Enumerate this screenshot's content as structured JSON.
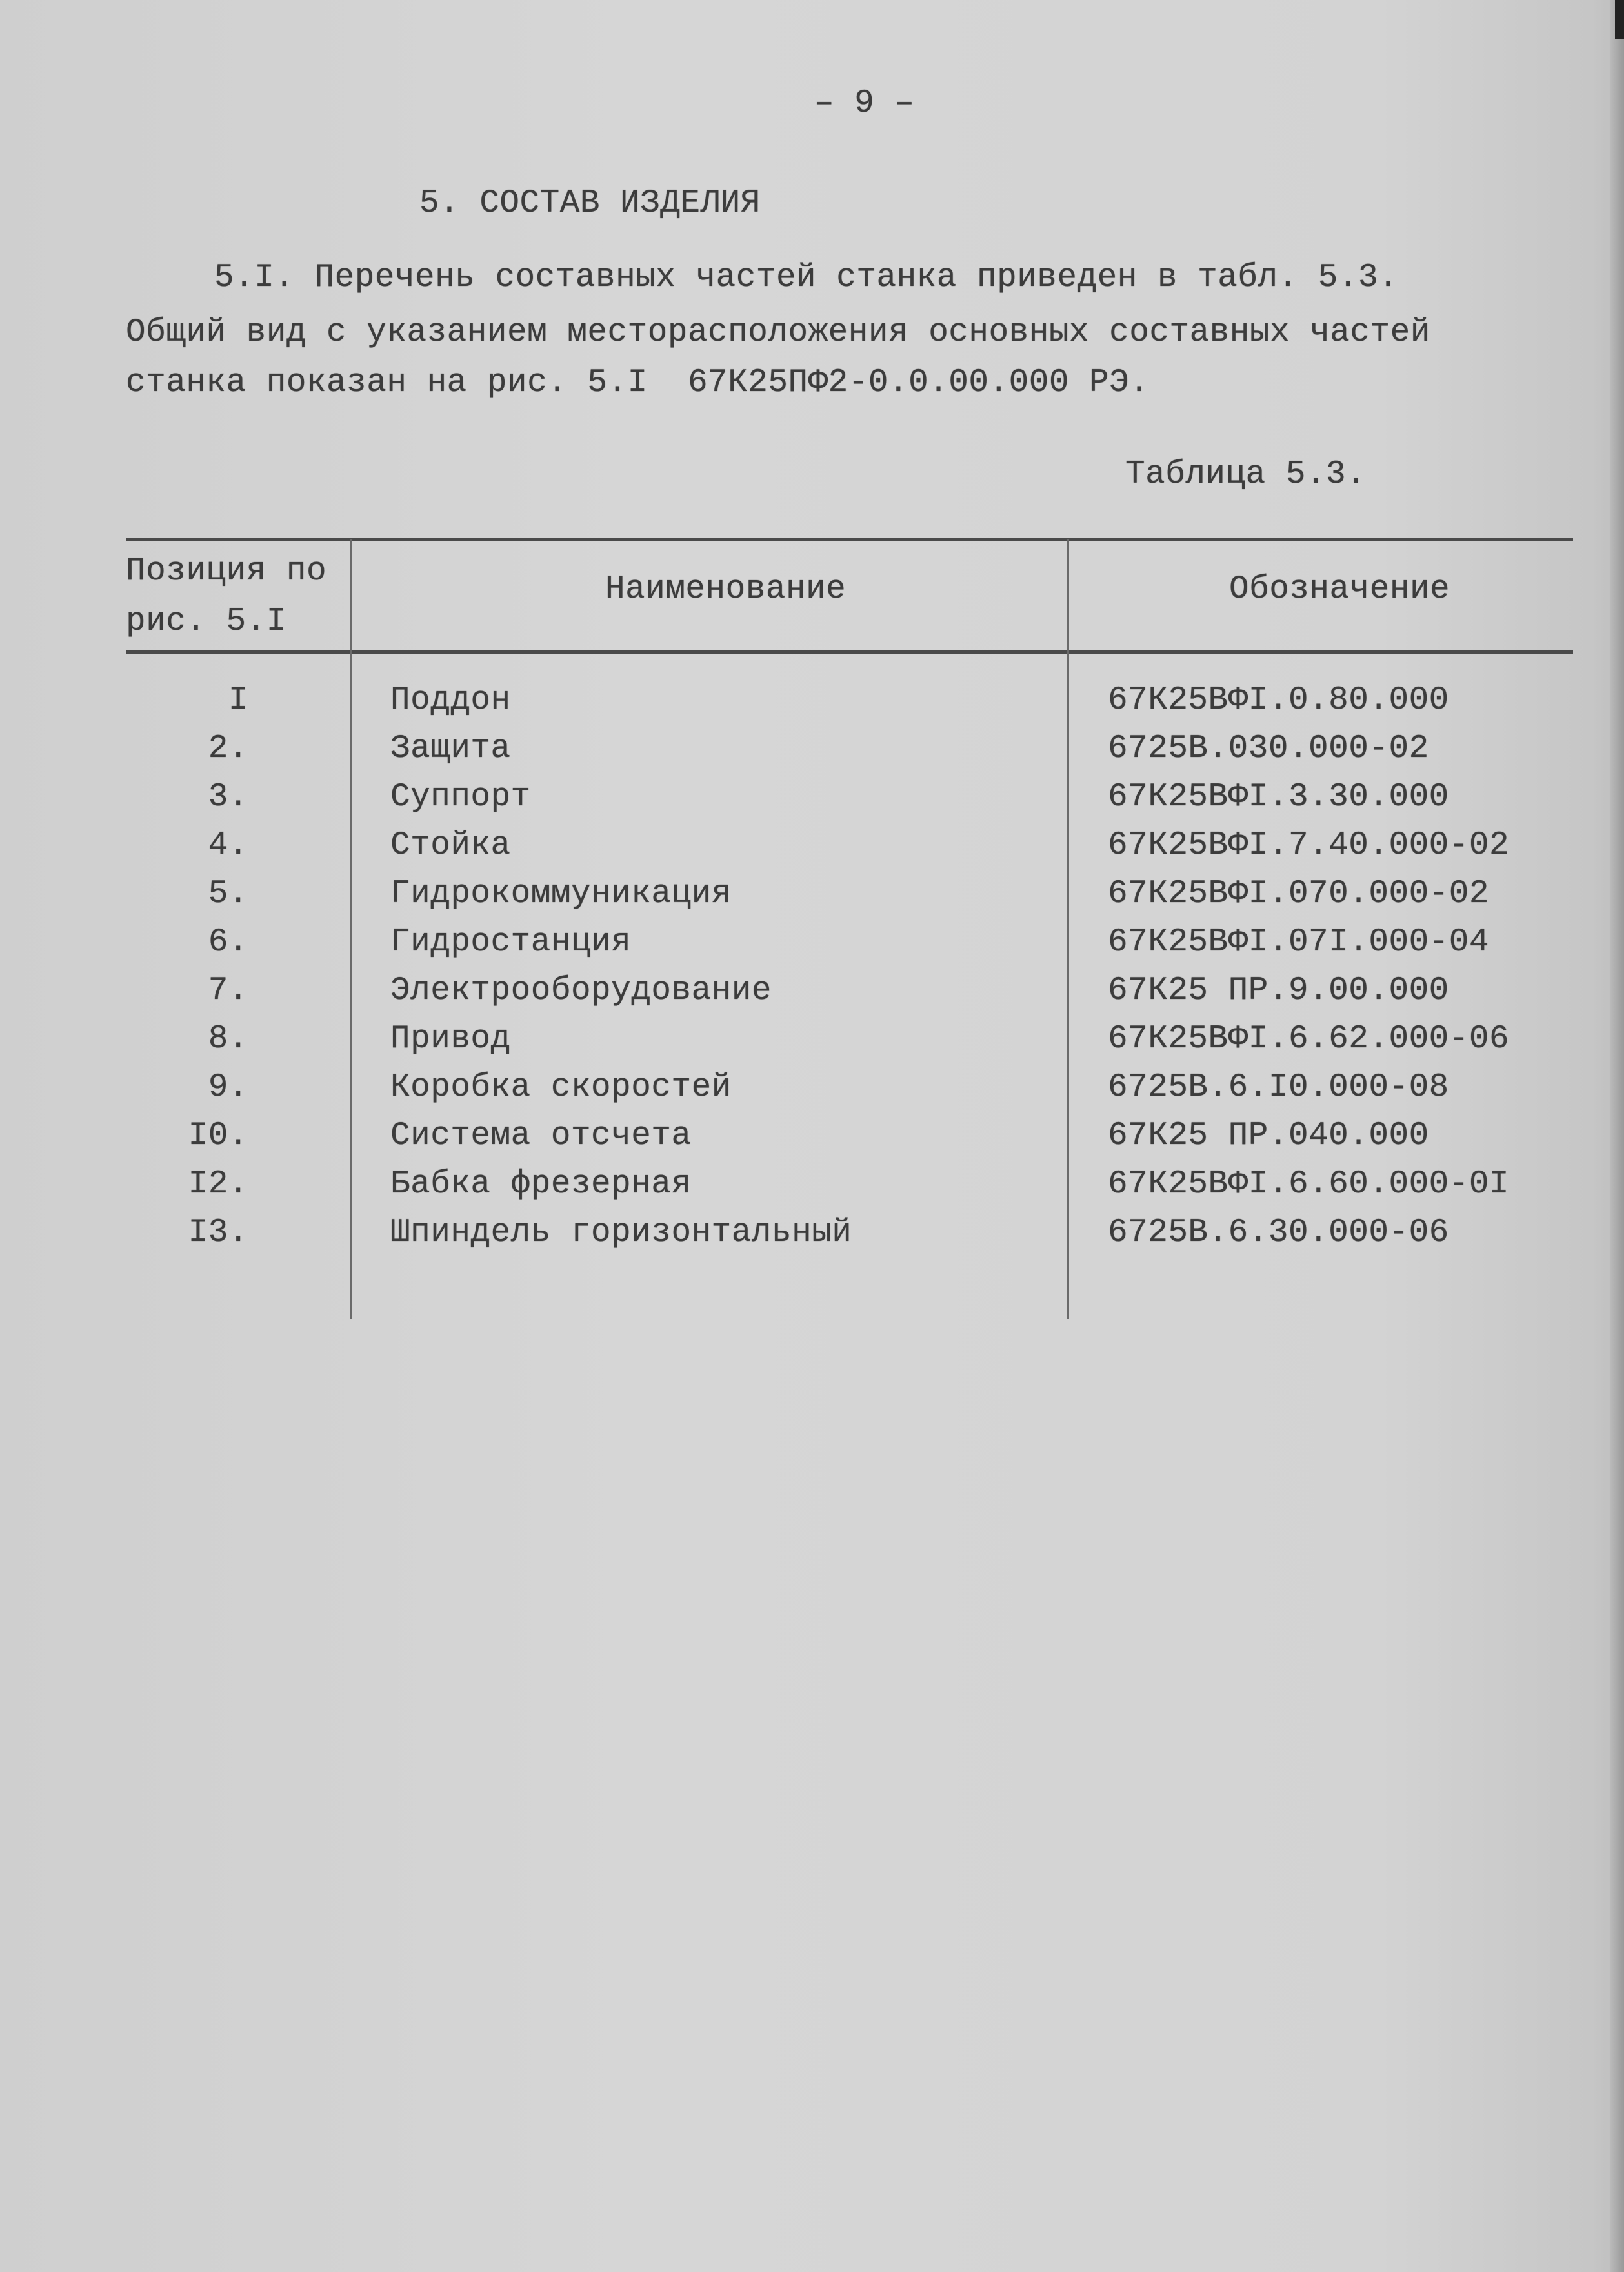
{
  "page_number": "– 9 –",
  "section_heading": "5. СОСТАВ ИЗДЕЛИЯ",
  "paragraph": [
    "5.I. Перечень составных частей станка приведен в табл. 5.3.",
    "Общий вид с указанием месторасположения основных составных частей",
    "станка показан на рис. 5.I  67К25ПФ2-0.0.00.000 РЭ."
  ],
  "table_caption": "Таблица 5.3.",
  "table": {
    "headers": {
      "position_line1": "Позиция по",
      "position_line2": "рис. 5.I",
      "name": "Наименование",
      "designation": "Обозначение"
    },
    "rows": [
      {
        "pos": "I",
        "name": "Поддон",
        "designation": "67К25ВФI.0.80.000"
      },
      {
        "pos": "2.",
        "name": "Защита",
        "designation": "6725В.030.000-02"
      },
      {
        "pos": "3.",
        "name": "Суппорт",
        "designation": "67К25ВФI.3.30.000"
      },
      {
        "pos": "4.",
        "name": "Стойка",
        "designation": "67К25ВФI.7.40.000-02"
      },
      {
        "pos": "5.",
        "name": "Гидрокоммуникация",
        "designation": "67К25ВФI.070.000-02"
      },
      {
        "pos": "6.",
        "name": "Гидростанция",
        "designation": "67К25ВФI.07I.000-04"
      },
      {
        "pos": "7.",
        "name": "Электрооборудование",
        "designation": "67К25 ПР.9.00.000"
      },
      {
        "pos": "8.",
        "name": "Привод",
        "designation": "67К25ВФI.6.62.000-06"
      },
      {
        "pos": "9.",
        "name": "Коробка скоростей",
        "designation": "6725В.6.I0.000-08"
      },
      {
        "pos": "I0.",
        "name": "Система отсчета",
        "designation": "67К25 ПР.040.000"
      },
      {
        "pos": "I2.",
        "name": "Бабка фрезерная",
        "designation": "67К25ВФI.6.60.000-0I"
      },
      {
        "pos": "I3.",
        "name": "Шпиндель горизонтальный",
        "designation": "6725В.6.30.000-06"
      }
    ]
  }
}
